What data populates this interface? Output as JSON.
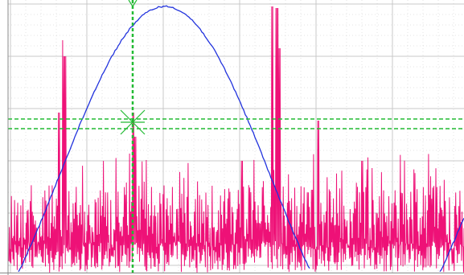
{
  "plot": {
    "background": "#ffffff",
    "grid_color": "#c8c8c8",
    "cursor_color": "#22bb33",
    "traces": [
      {
        "color": "#2233dd"
      },
      {
        "color": "#ee1177"
      }
    ]
  }
}
